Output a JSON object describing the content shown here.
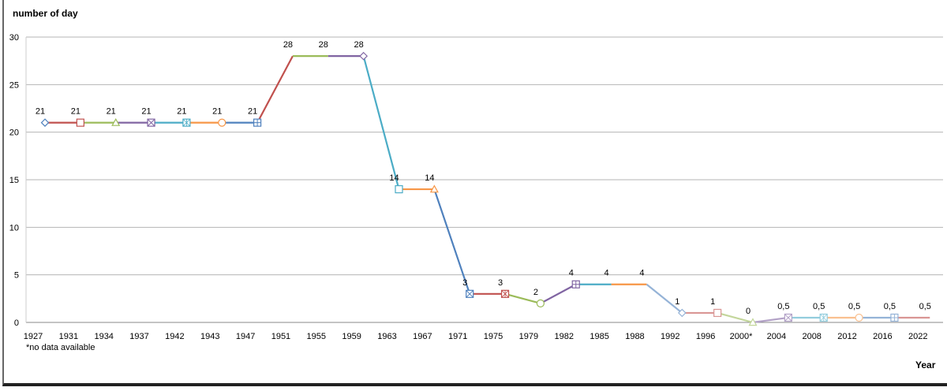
{
  "chart_data": {
    "type": "line",
    "ylabel": "number of day",
    "xlabel": "Year",
    "note": "*no data available",
    "ylim": [
      0,
      30
    ],
    "yticks": [
      0,
      5,
      10,
      15,
      20,
      25,
      30
    ],
    "grid": true,
    "categories": [
      "1927",
      "1931",
      "1934",
      "1937",
      "1942",
      "1943",
      "1947",
      "1951",
      "1955",
      "1959",
      "1963",
      "1967",
      "1971",
      "1975",
      "1979",
      "1982",
      "1985",
      "1988",
      "1992",
      "1996",
      "2000*",
      "2004",
      "2008",
      "2012",
      "2016",
      "2022"
    ],
    "values": [
      21,
      21,
      21,
      21,
      21,
      21,
      21,
      28,
      28,
      28,
      14,
      14,
      3,
      3,
      2,
      4,
      4,
      4,
      1,
      1,
      0,
      0.5,
      0.5,
      0.5,
      0.5,
      0.5
    ],
    "data_labels": [
      "21",
      "21",
      "21",
      "21",
      "21",
      "21",
      "21",
      "28",
      "28",
      "28",
      "14",
      "14",
      "3",
      "3",
      "2",
      "4",
      "4",
      "4",
      "1",
      "1",
      "0",
      "0,5",
      "0,5",
      "0,5",
      "0,5",
      "0,5"
    ],
    "colors": [
      "#4f81bd",
      "#c0504d",
      "#9bbb59",
      "#8064a2",
      "#4bacc6",
      "#f79646",
      "#95b3d7",
      "#d99694",
      "#c3d69b",
      "#b3a2c7",
      "#93cddd",
      "#fac090"
    ]
  }
}
